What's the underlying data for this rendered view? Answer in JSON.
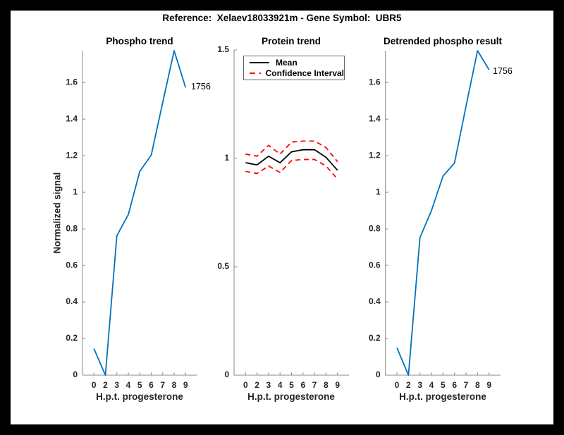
{
  "header": {
    "title": "Reference:  Xelaev18033921m - Gene Symbol:  UBR5"
  },
  "colors": {
    "figure_background": "#ffffff",
    "frame_background": "#000000",
    "blue_line": "#0072BD",
    "red_dashed": "#ff0000",
    "black_line": "#000000",
    "axis": "#888888",
    "tick_text": "#262626"
  },
  "chart_data": [
    {
      "id": "phospho-trend",
      "type": "line",
      "title": "Phospho trend",
      "xlabel": "H.p.t. progesterone",
      "ylabel": "Normalized signal",
      "x_labels": [
        "0",
        "2",
        "3",
        "4",
        "5",
        "6",
        "7",
        "8",
        "9"
      ],
      "ylim": [
        0,
        1.774
      ],
      "yticks": [
        0,
        0.2,
        0.4,
        0.6,
        0.8,
        1,
        1.2,
        1.4,
        1.6
      ],
      "grid": false,
      "series": [
        {
          "id": "phospho",
          "name": "Phospho signal",
          "color": "#0072BD",
          "line_style": "solid",
          "values": [
            0.145,
            0,
            0.762,
            0.878,
            1.114,
            1.203,
            1.49,
            1.774,
            1.573
          ]
        }
      ],
      "annotation": {
        "text": "1756",
        "at_x_label": "9",
        "at_value": 1.573
      }
    },
    {
      "id": "protein-trend",
      "type": "line",
      "title": "Protein trend",
      "xlabel": "H.p.t. progesterone",
      "ylabel": "",
      "x_labels": [
        "0",
        "2",
        "3",
        "4",
        "5",
        "6",
        "7",
        "8",
        "9"
      ],
      "ylim": [
        0,
        1.5
      ],
      "yticks": [
        0,
        0.5,
        1,
        1.5
      ],
      "grid": false,
      "legend_position": "northeast",
      "legend": [
        {
          "label": "Mean",
          "color": "#000000",
          "line_style": "solid"
        },
        {
          "label": "Confidence Interval",
          "color": "#ff0000",
          "line_style": "dashed"
        }
      ],
      "series": [
        {
          "id": "mean",
          "name": "Mean",
          "color": "#000000",
          "line_style": "solid",
          "values": [
            0.98,
            0.97,
            1.01,
            0.98,
            1.03,
            1.04,
            1.04,
            1.005,
            0.945
          ]
        },
        {
          "id": "ci-upper",
          "name": "Confidence Interval upper",
          "color": "#ff0000",
          "line_style": "dashed",
          "values": [
            1.02,
            1.01,
            1.06,
            1.02,
            1.075,
            1.08,
            1.08,
            1.05,
            0.985
          ]
        },
        {
          "id": "ci-lower",
          "name": "Confidence Interval lower",
          "color": "#ff0000",
          "line_style": "dashed",
          "values": [
            0.94,
            0.93,
            0.965,
            0.935,
            0.99,
            0.995,
            0.995,
            0.965,
            0.905
          ]
        }
      ]
    },
    {
      "id": "detrended-phospho-result",
      "type": "line",
      "title": "Detrended phospho result",
      "xlabel": "H.p.t. progesterone",
      "ylabel": "",
      "x_labels": [
        "0",
        "2",
        "3",
        "4",
        "5",
        "6",
        "7",
        "8",
        "9"
      ],
      "ylim": [
        0,
        1.774
      ],
      "yticks": [
        0,
        0.2,
        0.4,
        0.6,
        0.8,
        1,
        1.2,
        1.4,
        1.6
      ],
      "grid": false,
      "series": [
        {
          "id": "detrended",
          "name": "Detrended phospho signal",
          "color": "#0072BD",
          "line_style": "solid",
          "values": [
            0.15,
            0,
            0.752,
            0.9,
            1.088,
            1.16,
            1.47,
            1.774,
            1.67
          ]
        }
      ],
      "annotation": {
        "text": "1756",
        "at_x_label": "9",
        "at_value": 1.67
      }
    }
  ]
}
